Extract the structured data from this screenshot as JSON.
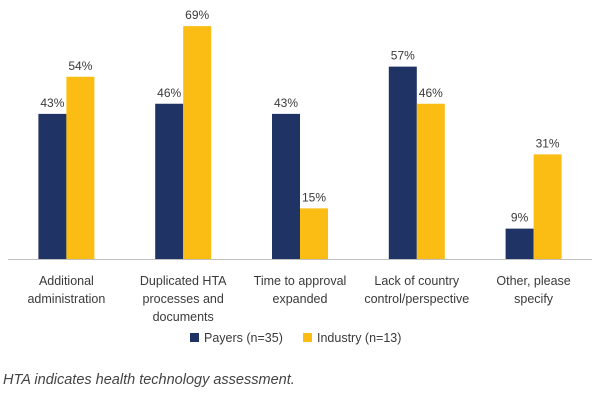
{
  "chart_data": {
    "type": "bar",
    "title": "",
    "xlabel": "",
    "ylabel": "",
    "ylim": [
      0,
      70
    ],
    "grid": false,
    "legend_position": "bottom-center",
    "categories": [
      "Additional administration",
      "Duplicated HTA processes and documents",
      "Time to approval expanded",
      "Lack of country control/perspective",
      "Other, please specify"
    ],
    "category_label_lines": [
      [
        "Additional",
        "administration"
      ],
      [
        "Duplicated HTA",
        "processes and",
        "documents"
      ],
      [
        "Time to approval",
        "expanded"
      ],
      [
        "Lack of country",
        "control/perspective"
      ],
      [
        "Other, please",
        "specify"
      ]
    ],
    "series": [
      {
        "name": "Payers (n=35)",
        "color": "#1f3364",
        "values": [
          43,
          46,
          43,
          57,
          9
        ],
        "labels": [
          "43%",
          "46%",
          "43%",
          "57%",
          "9%"
        ]
      },
      {
        "name": "Industry (n=13)",
        "color": "#fbbc13",
        "values": [
          54,
          69,
          15,
          46,
          31
        ],
        "labels": [
          "54%",
          "69%",
          "15%",
          "46%",
          "31%"
        ]
      }
    ]
  },
  "caption": "HTA indicates health technology assessment.",
  "colors": {
    "axis": "#bfbfbf",
    "text": "#3a3a3a"
  }
}
